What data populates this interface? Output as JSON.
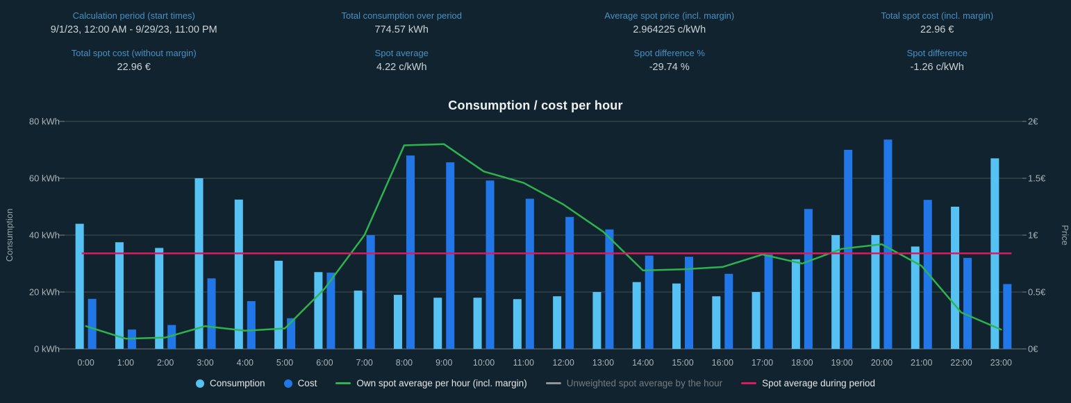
{
  "stats": {
    "items": [
      {
        "key": "calculation-period",
        "label": "Calculation period (start times)",
        "value": "9/1/23, 12:00 AM - 9/29/23, 11:00 PM"
      },
      {
        "key": "total-consumption",
        "label": "Total consumption over period",
        "value": "774.57 kWh"
      },
      {
        "key": "average-spot-price",
        "label": "Average spot price (incl. margin)",
        "value": "2.964225 c/kWh"
      },
      {
        "key": "total-spot-cost-incl-margin",
        "label": "Total spot cost (incl. margin)",
        "value": "22.96 €"
      },
      {
        "key": "total-spot-cost-without-margin",
        "label": "Total spot cost (without margin)",
        "value": "22.96 €"
      },
      {
        "key": "spot-average",
        "label": "Spot average",
        "value": "4.22 c/kWh"
      },
      {
        "key": "spot-difference-pct",
        "label": "Spot difference %",
        "value": "-29.74 %"
      },
      {
        "key": "spot-difference",
        "label": "Spot difference",
        "value": "-1.26 c/kWh"
      }
    ]
  },
  "chart_data": {
    "type": "bar",
    "title": "Consumption / cost per hour",
    "categories": [
      "0:00",
      "1:00",
      "2:00",
      "3:00",
      "4:00",
      "5:00",
      "6:00",
      "7:00",
      "8:00",
      "9:00",
      "10:00",
      "11:00",
      "12:00",
      "13:00",
      "14:00",
      "15:00",
      "16:00",
      "17:00",
      "18:00",
      "19:00",
      "20:00",
      "21:00",
      "22:00",
      "23:00"
    ],
    "left_axis": {
      "title": "Consumption",
      "ticks": [
        "80 kWh",
        "60 kWh",
        "40 kWh",
        "20 kWh",
        "0 kWh"
      ],
      "ylim": [
        0,
        80
      ],
      "unit": "kWh"
    },
    "right_axis": {
      "title": "Price",
      "ticks": [
        "2€",
        "1.5€",
        "1€",
        "0.5€",
        "0€"
      ],
      "ylim": [
        0,
        2
      ],
      "unit": "€"
    },
    "grid": true,
    "legend_position": "bottom",
    "series": [
      {
        "name": "Consumption",
        "type": "bar",
        "axis": "left",
        "unit": "kWh",
        "color": "#56c2f3",
        "values": [
          44,
          37.5,
          35.5,
          60,
          52.5,
          31,
          27,
          20.5,
          19,
          18,
          18,
          17.5,
          18.5,
          20,
          23.5,
          23,
          18.5,
          20,
          31.5,
          40,
          40,
          36,
          50,
          67
        ]
      },
      {
        "name": "Cost",
        "type": "bar",
        "axis": "right",
        "unit": "€",
        "color": "#2277e8",
        "values": [
          0.44,
          0.17,
          0.21,
          0.62,
          0.42,
          0.27,
          0.67,
          1.0,
          1.7,
          1.64,
          1.48,
          1.32,
          1.16,
          1.05,
          0.82,
          0.81,
          0.66,
          0.83,
          1.23,
          1.75,
          1.84,
          1.31,
          0.8,
          0.57
        ]
      },
      {
        "name": "Own spot average per hour (incl. margin)",
        "type": "line",
        "axis": "right",
        "unit": "€",
        "color": "#2db44e",
        "values": [
          0.2,
          0.09,
          0.1,
          0.2,
          0.16,
          0.18,
          0.53,
          1.0,
          1.79,
          1.8,
          1.56,
          1.46,
          1.27,
          1.03,
          0.69,
          0.7,
          0.72,
          0.83,
          0.75,
          0.88,
          0.92,
          0.73,
          0.32,
          0.17
        ]
      },
      {
        "name": "Unweighted spot average by the hour",
        "type": "line",
        "axis": "right",
        "unit": "€",
        "color": "#9aa1a7",
        "disabled": true,
        "values": []
      },
      {
        "name": "Spot average during period",
        "type": "line",
        "axis": "right",
        "unit": "€",
        "color": "#d81b60",
        "constant": 0.84
      }
    ]
  },
  "legend": {
    "items": [
      {
        "label": "Consumption",
        "marker": "dot",
        "color": "#56c2f3",
        "disabled": false
      },
      {
        "label": "Cost",
        "marker": "dot",
        "color": "#2277e8",
        "disabled": false
      },
      {
        "label": "Own spot average per hour (incl. margin)",
        "marker": "line",
        "color": "#2db44e",
        "disabled": false
      },
      {
        "label": "Unweighted spot average by the hour",
        "marker": "line",
        "color": "#8d969c",
        "disabled": true
      },
      {
        "label": "Spot average during period",
        "marker": "line",
        "color": "#d81b60",
        "disabled": false
      }
    ]
  }
}
